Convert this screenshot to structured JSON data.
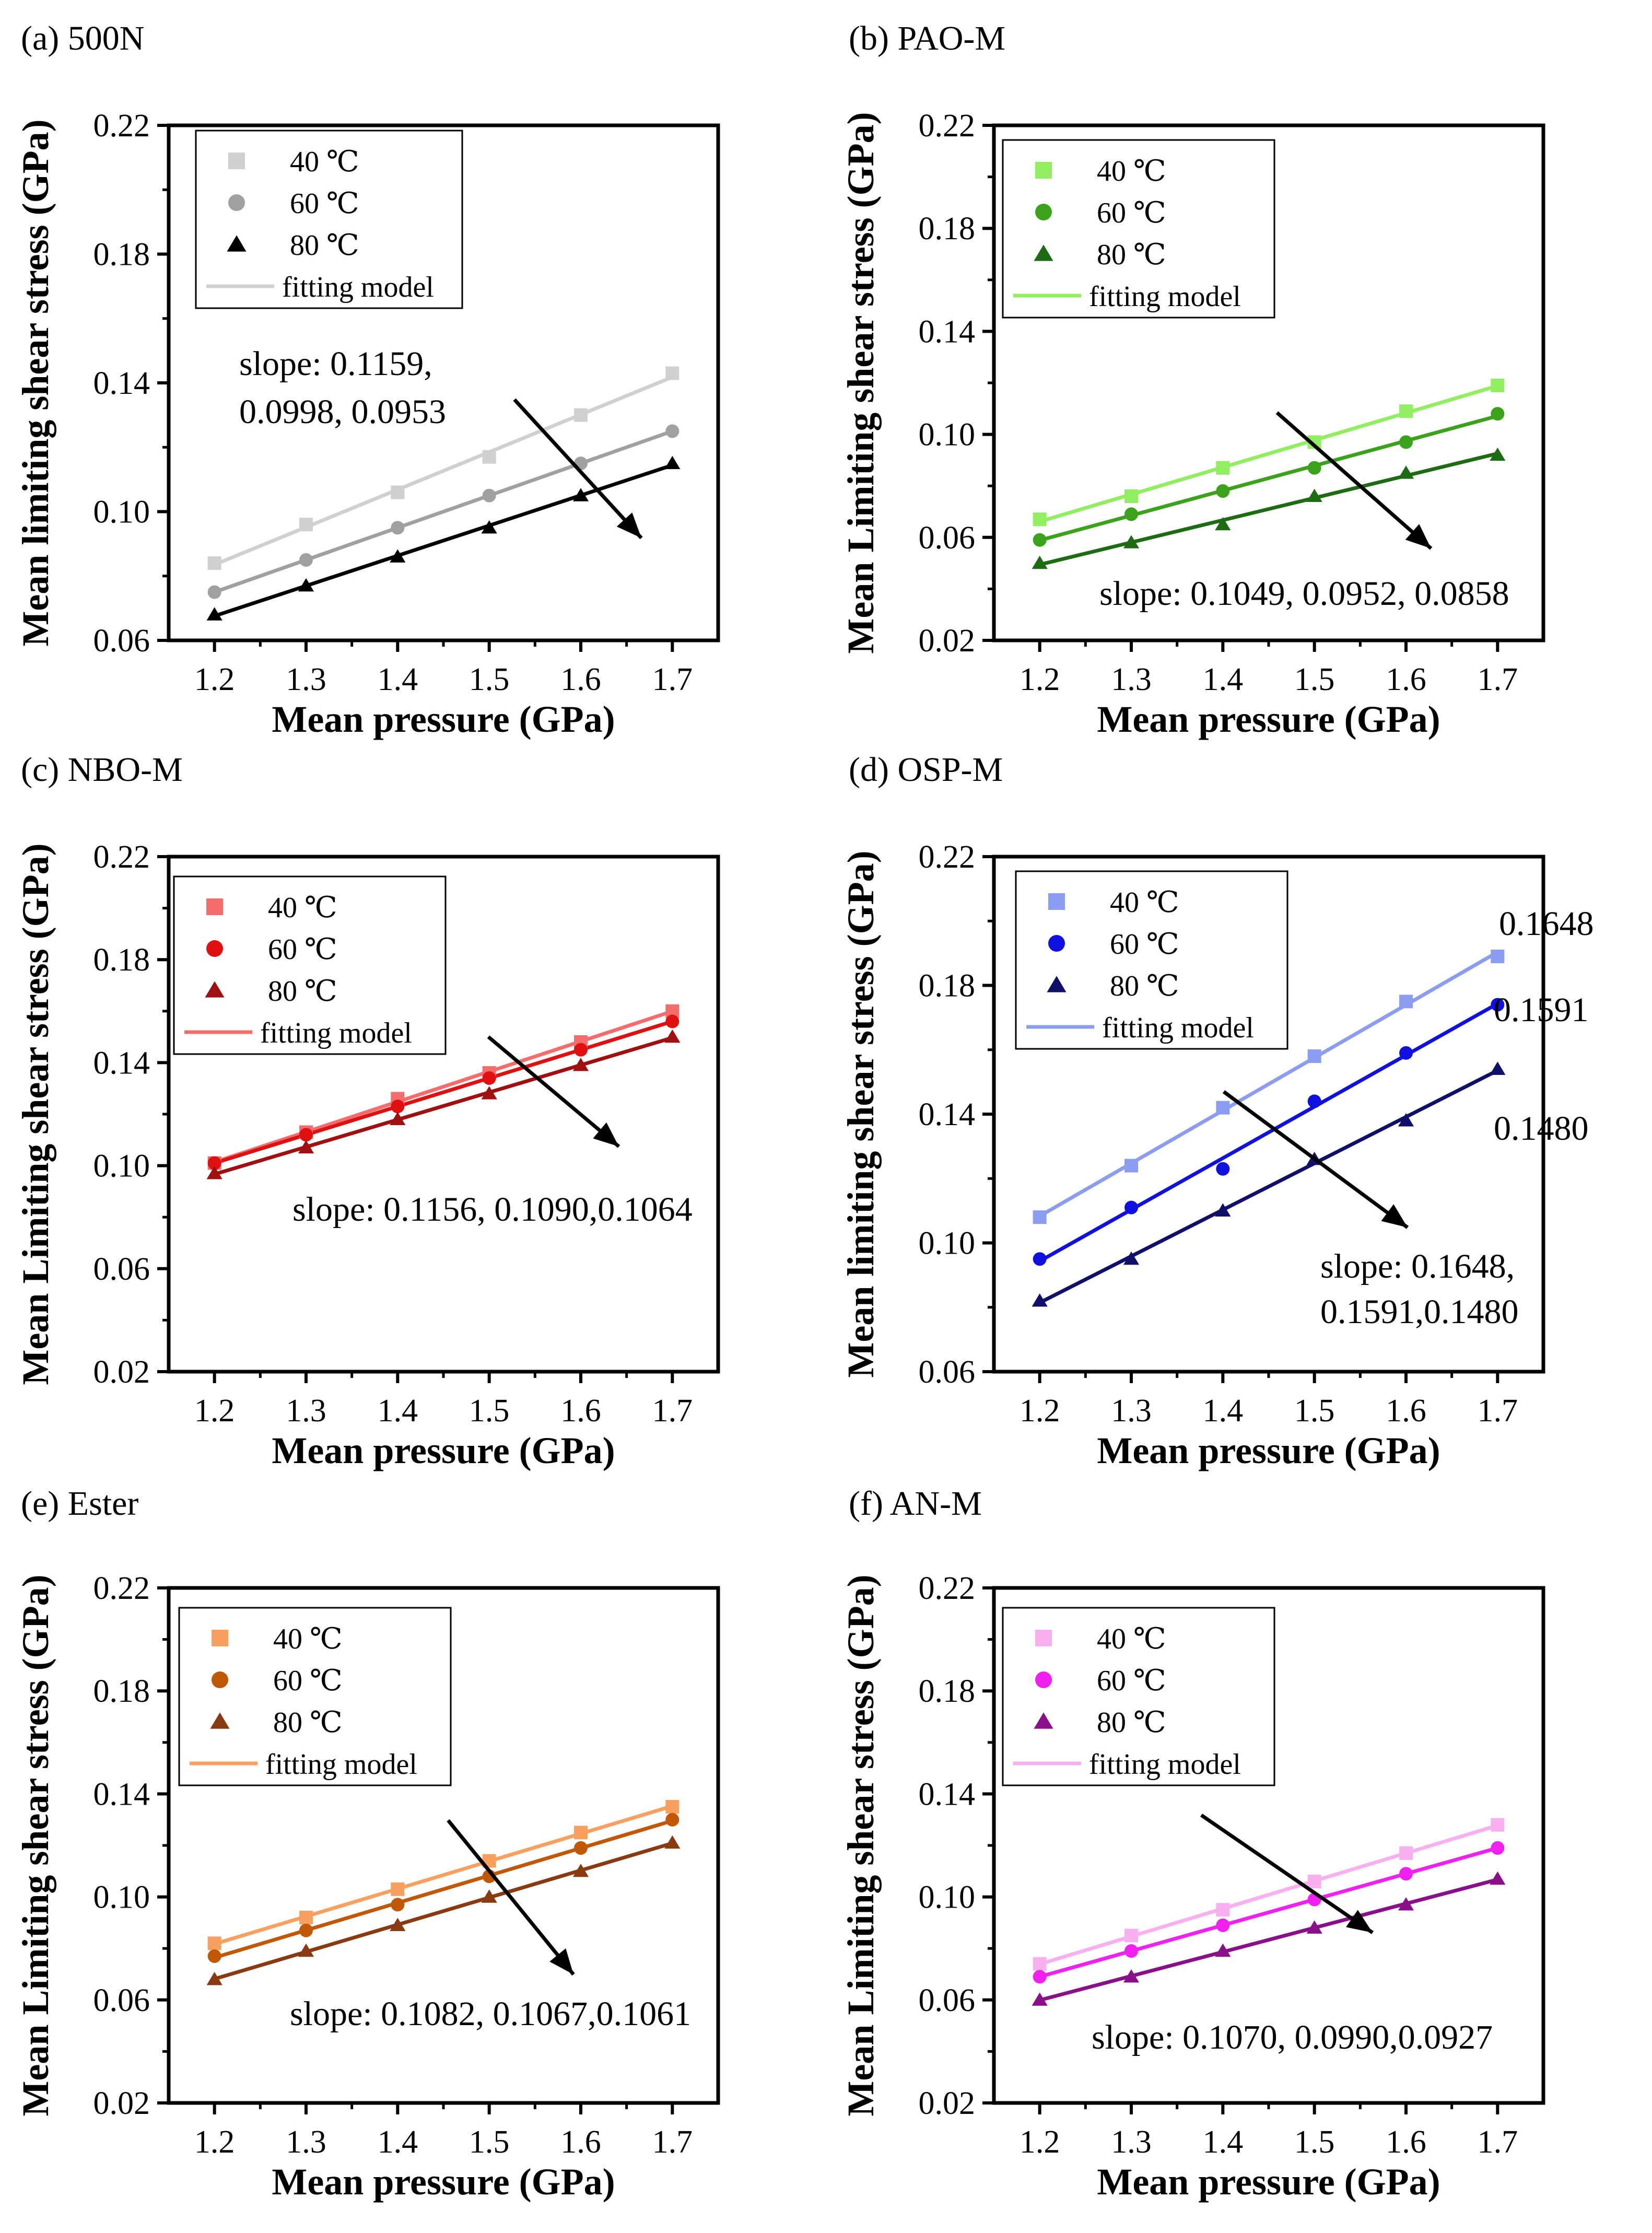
{
  "x_title": "Mean pressure (GPa)",
  "legend_labels": [
    "40 ℃",
    "60 ℃",
    "80 ℃",
    "fitting model"
  ],
  "chart_data": [
    {
      "type": "scatter",
      "label": "(a) 500N",
      "ylabel": "Mean limiting shear stress (GPa)",
      "xticks": [
        "1.2",
        "1.3",
        "1.4",
        "1.5",
        "1.6",
        "1.7"
      ],
      "yticks": [
        "0.06",
        "0.10",
        "0.14",
        "0.18",
        "0.22"
      ],
      "xlim": [
        1.15,
        1.75
      ],
      "ylim": [
        0.06,
        0.22
      ],
      "x": [
        1.2,
        1.3,
        1.4,
        1.5,
        1.6,
        1.7
      ],
      "series": [
        {
          "name": "40 ℃",
          "marker": "square",
          "color": "#d0d0d0",
          "values": [
            0.084,
            0.096,
            0.106,
            0.117,
            0.13,
            0.143
          ]
        },
        {
          "name": "60 ℃",
          "marker": "circle",
          "color": "#a0a0a0",
          "values": [
            0.075,
            0.085,
            0.095,
            0.105,
            0.115,
            0.125
          ]
        },
        {
          "name": "80 ℃",
          "marker": "triangle",
          "color": "#000000",
          "values": [
            0.068,
            0.077,
            0.086,
            0.095,
            0.105,
            0.115
          ]
        }
      ],
      "fit_name": "fitting model",
      "annotations": [
        "slope: 0.1159,",
        "0.0998, 0.0953"
      ]
    },
    {
      "type": "scatter",
      "label": "(b) PAO-M",
      "ylabel": "Mean Limiting shear stress (GPa)",
      "xticks": [
        "1.2",
        "1.3",
        "1.4",
        "1.5",
        "1.6",
        "1.7"
      ],
      "yticks": [
        "0.02",
        "0.06",
        "0.10",
        "0.14",
        "0.18",
        "0.22"
      ],
      "xlim": [
        1.15,
        1.75
      ],
      "ylim": [
        0.02,
        0.22
      ],
      "x": [
        1.2,
        1.3,
        1.4,
        1.5,
        1.6,
        1.7
      ],
      "series": [
        {
          "name": "40 ℃",
          "marker": "square",
          "color": "#90ee60",
          "values": [
            0.067,
            0.076,
            0.087,
            0.097,
            0.109,
            0.119
          ]
        },
        {
          "name": "60 ℃",
          "marker": "circle",
          "color": "#3aa31b",
          "values": [
            0.059,
            0.069,
            0.078,
            0.087,
            0.097,
            0.108
          ]
        },
        {
          "name": "80 ℃",
          "marker": "triangle",
          "color": "#1d6b12",
          "values": [
            0.05,
            0.058,
            0.065,
            0.076,
            0.085,
            0.092
          ]
        }
      ],
      "fit_name": "fitting model",
      "annotations": [
        "slope: 0.1049, 0.0952, 0.0858"
      ]
    },
    {
      "type": "scatter",
      "label": "(c) NBO-M",
      "ylabel": "Mean Limiting shear stress (GPa)",
      "xticks": [
        "1.2",
        "1.3",
        "1.4",
        "1.5",
        "1.6",
        "1.7"
      ],
      "yticks": [
        "0.02",
        "0.06",
        "0.10",
        "0.14",
        "0.18",
        "0.22"
      ],
      "xlim": [
        1.15,
        1.75
      ],
      "ylim": [
        0.02,
        0.22
      ],
      "x": [
        1.2,
        1.3,
        1.4,
        1.5,
        1.6,
        1.7
      ],
      "series": [
        {
          "name": "40 ℃",
          "marker": "square",
          "color": "#f56c6c",
          "values": [
            0.101,
            0.113,
            0.126,
            0.136,
            0.148,
            0.16
          ]
        },
        {
          "name": "60 ℃",
          "marker": "circle",
          "color": "#e01010",
          "values": [
            0.101,
            0.112,
            0.123,
            0.134,
            0.145,
            0.156
          ]
        },
        {
          "name": "80 ℃",
          "marker": "triangle",
          "color": "#a01010",
          "values": [
            0.097,
            0.107,
            0.118,
            0.128,
            0.139,
            0.15
          ]
        }
      ],
      "fit_name": "fitting model",
      "annotations": [
        "slope: 0.1156, 0.1090,0.1064"
      ]
    },
    {
      "type": "scatter",
      "label": "(d) OSP-M",
      "ylabel": "Mean limiting shear stress (GPa)",
      "xticks": [
        "1.2",
        "1.3",
        "1.4",
        "1.5",
        "1.6",
        "1.7"
      ],
      "yticks": [
        "0.06",
        "0.10",
        "0.14",
        "0.18",
        "0.22"
      ],
      "xlim": [
        1.15,
        1.75
      ],
      "ylim": [
        0.06,
        0.22
      ],
      "x": [
        1.2,
        1.3,
        1.4,
        1.5,
        1.6,
        1.7
      ],
      "series": [
        {
          "name": "40 ℃",
          "marker": "square",
          "color": "#8c9cf0",
          "values": [
            0.108,
            0.124,
            0.142,
            0.158,
            0.175,
            0.189
          ]
        },
        {
          "name": "60 ℃",
          "marker": "circle",
          "color": "#1010e0",
          "values": [
            0.095,
            0.111,
            0.123,
            0.144,
            0.159,
            0.174
          ]
        },
        {
          "name": "80 ℃",
          "marker": "triangle",
          "color": "#10106b",
          "values": [
            0.082,
            0.095,
            0.11,
            0.126,
            0.138,
            0.154
          ]
        }
      ],
      "fit_name": "fitting model",
      "annotations": [
        "0.1648",
        "0.1591",
        "0.1480",
        "slope: 0.1648,",
        "0.1591,0.1480"
      ]
    },
    {
      "type": "scatter",
      "label": "(e) Ester",
      "ylabel": "Mean Limiting shear stress (GPa)",
      "xticks": [
        "1.2",
        "1.3",
        "1.4",
        "1.5",
        "1.6",
        "1.7"
      ],
      "yticks": [
        "0.02",
        "0.06",
        "0.10",
        "0.14",
        "0.18",
        "0.22"
      ],
      "xlim": [
        1.15,
        1.75
      ],
      "ylim": [
        0.02,
        0.22
      ],
      "x": [
        1.2,
        1.3,
        1.4,
        1.5,
        1.6,
        1.7
      ],
      "series": [
        {
          "name": "40 ℃",
          "marker": "square",
          "color": "#f8a060",
          "values": [
            0.082,
            0.092,
            0.103,
            0.114,
            0.125,
            0.135
          ]
        },
        {
          "name": "60 ℃",
          "marker": "circle",
          "color": "#c05808",
          "values": [
            0.077,
            0.087,
            0.097,
            0.108,
            0.119,
            0.13
          ]
        },
        {
          "name": "80 ℃",
          "marker": "triangle",
          "color": "#8a3a10",
          "values": [
            0.068,
            0.079,
            0.089,
            0.1,
            0.11,
            0.121
          ]
        }
      ],
      "fit_name": "fitting model",
      "annotations": [
        "slope: 0.1082, 0.1067,0.1061"
      ]
    },
    {
      "type": "scatter",
      "label": "(f) AN-M",
      "ylabel": "Mean Limiting shear stress (GPa)",
      "xticks": [
        "1.2",
        "1.3",
        "1.4",
        "1.5",
        "1.6",
        "1.7"
      ],
      "yticks": [
        "0.02",
        "0.06",
        "0.10",
        "0.14",
        "0.18",
        "0.22"
      ],
      "xlim": [
        1.15,
        1.75
      ],
      "ylim": [
        0.02,
        0.22
      ],
      "x": [
        1.2,
        1.3,
        1.4,
        1.5,
        1.6,
        1.7
      ],
      "series": [
        {
          "name": "40 ℃",
          "marker": "square",
          "color": "#f8b0f0",
          "values": [
            0.074,
            0.085,
            0.095,
            0.106,
            0.117,
            0.128
          ]
        },
        {
          "name": "60 ℃",
          "marker": "circle",
          "color": "#f020f0",
          "values": [
            0.069,
            0.079,
            0.089,
            0.099,
            0.109,
            0.119
          ]
        },
        {
          "name": "80 ℃",
          "marker": "triangle",
          "color": "#8a108a",
          "values": [
            0.06,
            0.069,
            0.079,
            0.088,
            0.097,
            0.107
          ]
        }
      ],
      "fit_name": "fitting model",
      "annotations": [
        "slope: 0.1070, 0.0990,0.0927"
      ]
    }
  ]
}
